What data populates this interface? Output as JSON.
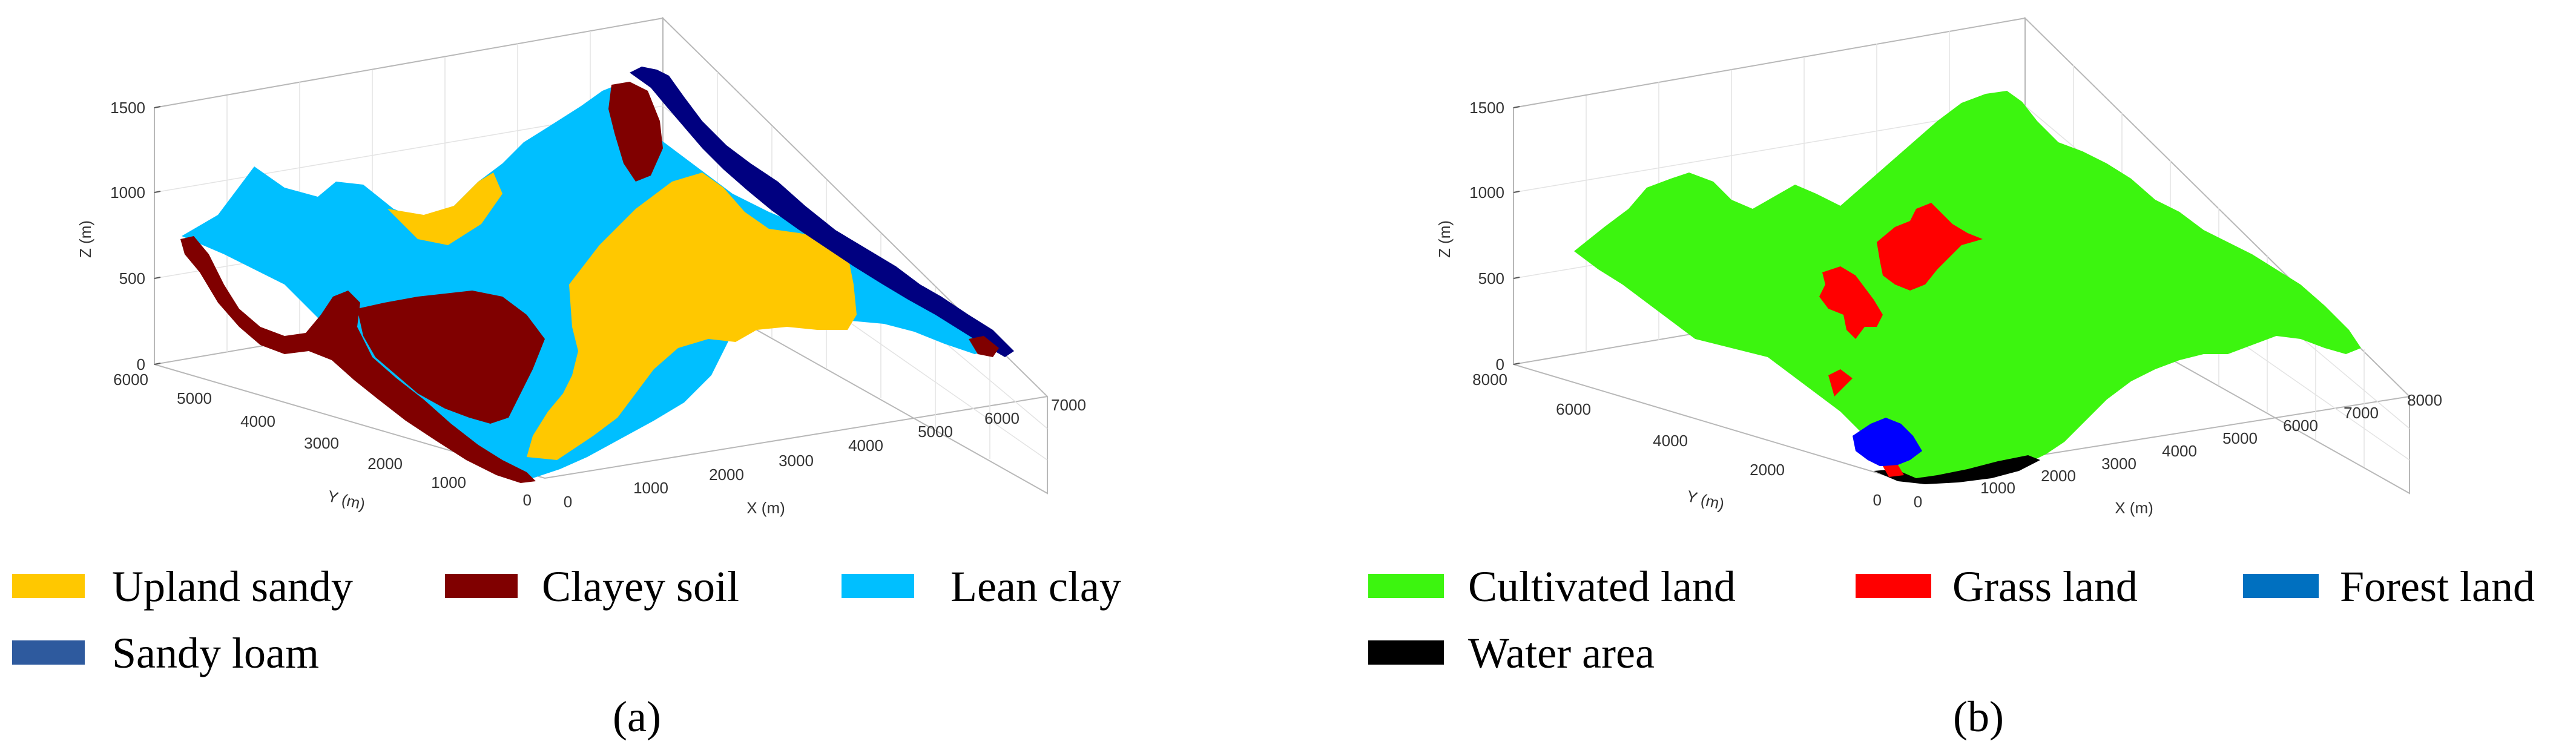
{
  "chart_data": [
    {
      "type": "surface3d",
      "panel": "a",
      "caption": "(a)",
      "xlabel": "X (m)",
      "ylabel": "Y (m)",
      "zlabel": "Z (m)",
      "xlim": [
        0,
        7000
      ],
      "ylim": [
        0,
        6000
      ],
      "zlim": [
        0,
        1500
      ],
      "xticks": [
        0,
        1000,
        2000,
        3000,
        4000,
        5000,
        6000,
        7000
      ],
      "yticks": [
        0,
        1000,
        2000,
        3000,
        4000,
        5000,
        6000
      ],
      "zticks": [
        0,
        500,
        1000,
        1500
      ],
      "grid": true,
      "legend": [
        {
          "label": "Upland sandy",
          "color": "#FFC800"
        },
        {
          "label": "Clayey soil",
          "color": "#800000"
        },
        {
          "label": "Lean clay",
          "color": "#00BFFF"
        },
        {
          "label": "Sandy loam",
          "color": "#2E5A9E"
        }
      ]
    },
    {
      "type": "surface3d",
      "panel": "b",
      "caption": "(b)",
      "xlabel": "X (m)",
      "ylabel": "Y (m)",
      "zlabel": "Z (m)",
      "xlim": [
        0,
        8000
      ],
      "ylim": [
        0,
        8000
      ],
      "zlim": [
        0,
        1500
      ],
      "xticks": [
        0,
        1000,
        2000,
        3000,
        4000,
        5000,
        6000,
        7000,
        8000
      ],
      "yticks": [
        0,
        2000,
        4000,
        6000,
        8000
      ],
      "zticks": [
        0,
        500,
        1000,
        1500
      ],
      "grid": true,
      "legend": [
        {
          "label": "Cultivated land",
          "color": "#3CF50F"
        },
        {
          "label": "Grass land",
          "color": "#FF0000"
        },
        {
          "label": "Forest land",
          "color": "#0070C0"
        },
        {
          "label": "Water area",
          "color": "#000000"
        }
      ]
    }
  ]
}
